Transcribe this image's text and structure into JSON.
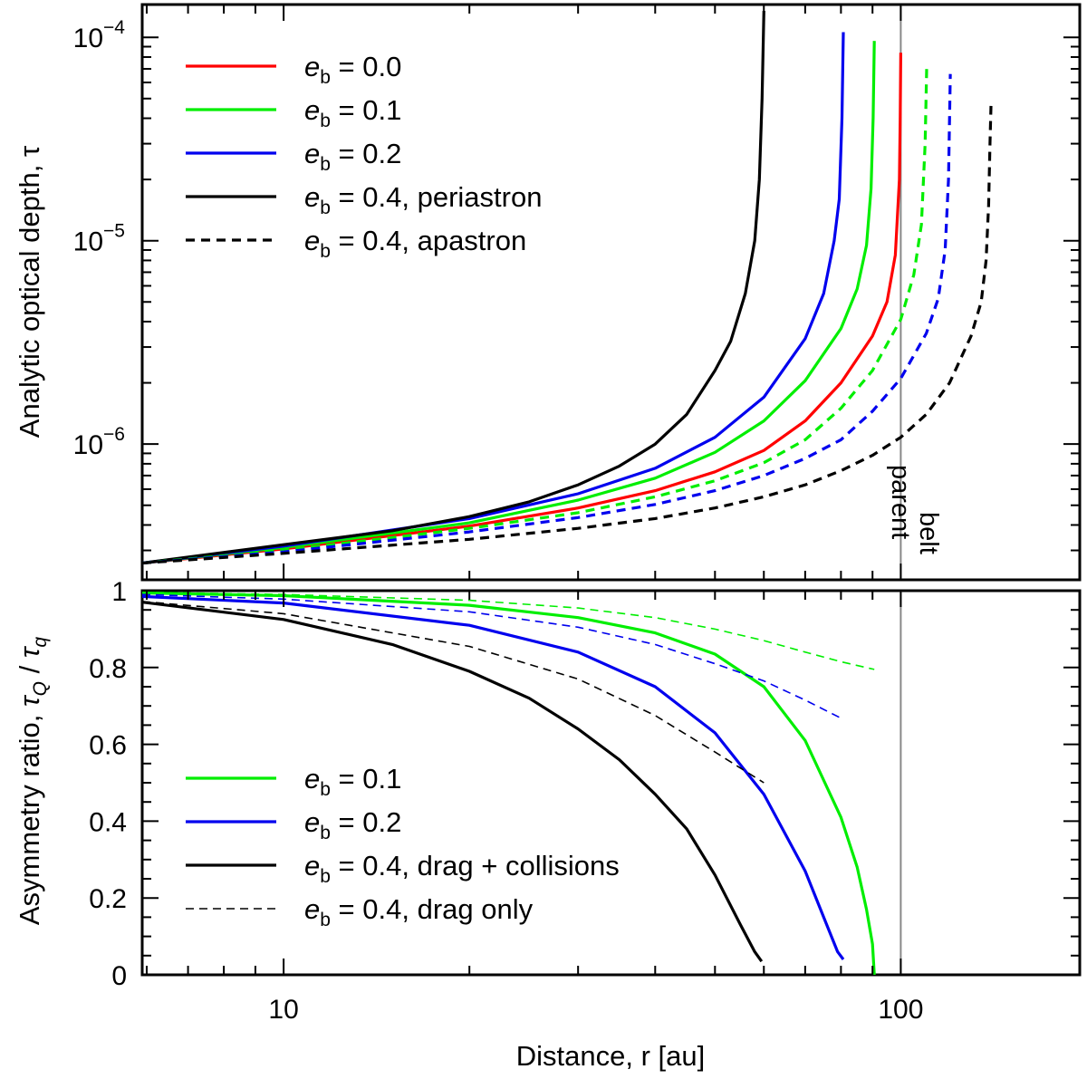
{
  "chart_data": [
    {
      "type": "line",
      "panel": "top",
      "ylabel": "Analytic optical depth, τ",
      "xscale": "log",
      "yscale": "log",
      "xlim": [
        5.9,
        195
      ],
      "ylim": [
        2.15e-07,
        0.000145
      ],
      "yticks": [
        {
          "value": 1e-06,
          "mant": "10",
          "exp": "−6"
        },
        {
          "value": 1e-05,
          "mant": "10",
          "exp": "−5"
        },
        {
          "value": 0.0001,
          "mant": "10",
          "exp": "−4"
        }
      ],
      "reference_line": {
        "x": 100,
        "labels": [
          "parent",
          "belt"
        ]
      },
      "legend": [
        {
          "symbol": "e",
          "sub": "b",
          "text": " = 0.0",
          "color": "#ff0000",
          "dash": "solid"
        },
        {
          "symbol": "e",
          "sub": "b",
          "text": " = 0.1",
          "color": "#00ee00",
          "dash": "solid"
        },
        {
          "symbol": "e",
          "sub": "b",
          "text": " = 0.2",
          "color": "#0000ee",
          "dash": "solid"
        },
        {
          "symbol": "e",
          "sub": "b",
          "text": " = 0.4, periastron",
          "color": "#000000",
          "dash": "solid"
        },
        {
          "symbol": "e",
          "sub": "b",
          "text": " = 0.4, apastron",
          "color": "#000000",
          "dash": "dashed"
        }
      ],
      "series": [
        {
          "name": "e_b = 0.0",
          "color": "#ff0000",
          "dash": "solid",
          "width": 3.2,
          "points": [
            [
              5.9,
              2.6e-07
            ],
            [
              10,
              3.05e-07
            ],
            [
              20,
              3.95e-07
            ],
            [
              30,
              4.85e-07
            ],
            [
              40,
              5.9e-07
            ],
            [
              50,
              7.3e-07
            ],
            [
              60,
              9.3e-07
            ],
            [
              70,
              1.3e-06
            ],
            [
              80,
              2e-06
            ],
            [
              90,
              3.4e-06
            ],
            [
              95,
              5e-06
            ],
            [
              98,
              8.5e-06
            ],
            [
              99.5,
              2e-05
            ],
            [
              99.8,
              4e-05
            ],
            [
              100,
              8.4e-05
            ]
          ]
        },
        {
          "name": "e_b = 0.1",
          "color": "#00ee00",
          "dash": "solid",
          "width": 3.2,
          "points": [
            [
              5.9,
              2.6e-07
            ],
            [
              10,
              3.1e-07
            ],
            [
              20,
              4.1e-07
            ],
            [
              30,
              5.3e-07
            ],
            [
              40,
              6.8e-07
            ],
            [
              50,
              9.1e-07
            ],
            [
              60,
              1.3e-06
            ],
            [
              70,
              2.05e-06
            ],
            [
              80,
              3.7e-06
            ],
            [
              85,
              5.8e-06
            ],
            [
              88,
              9.5e-06
            ],
            [
              89.5,
              1.8e-05
            ],
            [
              90.2,
              4e-05
            ],
            [
              90.6,
              9.6e-05
            ]
          ]
        },
        {
          "name": "e_b = 0.2",
          "color": "#0000ee",
          "dash": "solid",
          "width": 3.2,
          "points": [
            [
              5.9,
              2.6e-07
            ],
            [
              10,
              3.15e-07
            ],
            [
              20,
              4.3e-07
            ],
            [
              30,
              5.7e-07
            ],
            [
              40,
              7.6e-07
            ],
            [
              50,
              1.08e-06
            ],
            [
              60,
              1.7e-06
            ],
            [
              70,
              3.3e-06
            ],
            [
              75,
              5.5e-06
            ],
            [
              78,
              1e-05
            ],
            [
              79.5,
              1.6e-05
            ],
            [
              80.3,
              4e-05
            ],
            [
              80.7,
              0.000106
            ]
          ]
        },
        {
          "name": "e_b = 0.4, periastron",
          "color": "#000000",
          "dash": "solid",
          "width": 3.2,
          "points": [
            [
              5.9,
              2.6e-07
            ],
            [
              10,
              3.2e-07
            ],
            [
              15,
              3.75e-07
            ],
            [
              20,
              4.4e-07
            ],
            [
              25,
              5.2e-07
            ],
            [
              30,
              6.3e-07
            ],
            [
              35,
              7.8e-07
            ],
            [
              40,
              1e-06
            ],
            [
              45,
              1.4e-06
            ],
            [
              50,
              2.3e-06
            ],
            [
              53,
              3.2e-06
            ],
            [
              56,
              5.5e-06
            ],
            [
              58,
              1e-05
            ],
            [
              59,
              2e-05
            ],
            [
              59.6,
              5e-05
            ],
            [
              60,
              0.000135
            ]
          ]
        },
        {
          "name": "e_b = 0.1 (apastron)",
          "color": "#00ee00",
          "dash": "dashed",
          "width": 3.2,
          "points": [
            [
              5.9,
              2.6e-07
            ],
            [
              10,
              3e-07
            ],
            [
              20,
              3.85e-07
            ],
            [
              30,
              4.6e-07
            ],
            [
              40,
              5.5e-07
            ],
            [
              50,
              6.6e-07
            ],
            [
              60,
              8.1e-07
            ],
            [
              70,
              1.05e-06
            ],
            [
              80,
              1.5e-06
            ],
            [
              90,
              2.3e-06
            ],
            [
              100,
              4.1e-06
            ],
            [
              105,
              6.8e-06
            ],
            [
              108,
              1.2e-05
            ],
            [
              109.5,
              3e-05
            ],
            [
              110.2,
              7.4e-05
            ]
          ]
        },
        {
          "name": "e_b = 0.2 (apastron)",
          "color": "#0000ee",
          "dash": "dashed",
          "width": 3.2,
          "points": [
            [
              5.9,
              2.6e-07
            ],
            [
              10,
              2.95e-07
            ],
            [
              20,
              3.7e-07
            ],
            [
              30,
              4.35e-07
            ],
            [
              40,
              5.05e-07
            ],
            [
              50,
              5.9e-07
            ],
            [
              60,
              7e-07
            ],
            [
              70,
              8.5e-07
            ],
            [
              80,
              1.05e-06
            ],
            [
              90,
              1.45e-06
            ],
            [
              100,
              2.1e-06
            ],
            [
              110,
              3.5e-06
            ],
            [
              115,
              5.2e-06
            ],
            [
              118,
              9e-06
            ],
            [
              119.5,
              2e-05
            ],
            [
              120.3,
              6.6e-05
            ]
          ]
        },
        {
          "name": "e_b = 0.4, apastron",
          "color": "#000000",
          "dash": "dashed",
          "width": 3.2,
          "points": [
            [
              5.9,
              2.6e-07
            ],
            [
              10,
              2.9e-07
            ],
            [
              20,
              3.4e-07
            ],
            [
              30,
              3.85e-07
            ],
            [
              40,
              4.3e-07
            ],
            [
              50,
              4.85e-07
            ],
            [
              60,
              5.5e-07
            ],
            [
              70,
              6.3e-07
            ],
            [
              80,
              7.4e-07
            ],
            [
              90,
              8.8e-07
            ],
            [
              100,
              1.08e-06
            ],
            [
              110,
              1.4e-06
            ],
            [
              120,
              2e-06
            ],
            [
              130,
              3.4e-06
            ],
            [
              135,
              5e-06
            ],
            [
              137.5,
              8e-06
            ],
            [
              138.8,
              1.5e-05
            ],
            [
              139.5,
              3e-05
            ],
            [
              140,
              4.6e-05
            ]
          ]
        }
      ]
    },
    {
      "type": "line",
      "panel": "bottom",
      "xlabel": "Distance, r [au]",
      "xscale": "log",
      "xlim": [
        5.9,
        195
      ],
      "ylim": [
        0,
        1.0
      ],
      "xticks": [
        {
          "value": 10,
          "label": "10"
        },
        {
          "value": 100,
          "label": "100"
        }
      ],
      "yticks": [
        {
          "value": 0,
          "label": "0"
        },
        {
          "value": 0.2,
          "label": "0.2"
        },
        {
          "value": 0.4,
          "label": "0.4"
        },
        {
          "value": 0.6,
          "label": "0.6"
        },
        {
          "value": 0.8,
          "label": "0.8"
        },
        {
          "value": 1.0,
          "label": "1"
        }
      ],
      "ylabel_parts": {
        "text": "Asymmetry ratio, ",
        "t1": "τ",
        "s1": "Q",
        "slash": " / ",
        "t2": "τ",
        "s2": "q"
      },
      "reference_line": {
        "x": 100
      },
      "legend": [
        {
          "symbol": "e",
          "sub": "b",
          "text": " = 0.1",
          "color": "#00ee00",
          "dash": "solid",
          "width": 3.2
        },
        {
          "symbol": "e",
          "sub": "b",
          "text": " = 0.2",
          "color": "#0000ee",
          "dash": "solid",
          "width": 3.2
        },
        {
          "symbol": "e",
          "sub": "b",
          "text": " = 0.4, drag + collisions",
          "color": "#000000",
          "dash": "solid",
          "width": 3.2
        },
        {
          "symbol": "e",
          "sub": "b",
          "text": " = 0.4, drag only",
          "color": "#000000",
          "dash": "dashed",
          "width": 1.6
        }
      ],
      "series": [
        {
          "name": "e_b = 0.1, drag + collisions",
          "color": "#00ee00",
          "dash": "solid",
          "width": 3.2,
          "points": [
            [
              5.9,
              0.994
            ],
            [
              10,
              0.987
            ],
            [
              20,
              0.962
            ],
            [
              30,
              0.93
            ],
            [
              40,
              0.89
            ],
            [
              50,
              0.835
            ],
            [
              60,
              0.75
            ],
            [
              70,
              0.61
            ],
            [
              80,
              0.41
            ],
            [
              85,
              0.28
            ],
            [
              88,
              0.17
            ],
            [
              90,
              0.08
            ],
            [
              90.6,
              0.0
            ]
          ]
        },
        {
          "name": "e_b = 0.1, drag only",
          "color": "#00ee00",
          "dash": "dashed",
          "width": 1.6,
          "points": [
            [
              5.9,
              0.996
            ],
            [
              10,
              0.99
            ],
            [
              20,
              0.975
            ],
            [
              30,
              0.955
            ],
            [
              40,
              0.93
            ],
            [
              50,
              0.9
            ],
            [
              60,
              0.87
            ],
            [
              70,
              0.84
            ],
            [
              80,
              0.815
            ],
            [
              90.6,
              0.795
            ]
          ]
        },
        {
          "name": "e_b = 0.2, drag + collisions",
          "color": "#0000ee",
          "dash": "solid",
          "width": 3.2,
          "points": [
            [
              5.9,
              0.985
            ],
            [
              10,
              0.968
            ],
            [
              20,
              0.91
            ],
            [
              30,
              0.84
            ],
            [
              40,
              0.75
            ],
            [
              50,
              0.63
            ],
            [
              60,
              0.47
            ],
            [
              70,
              0.27
            ],
            [
              75,
              0.15
            ],
            [
              79,
              0.06
            ],
            [
              80.7,
              0.04
            ]
          ]
        },
        {
          "name": "e_b = 0.2, drag only",
          "color": "#0000ee",
          "dash": "dashed",
          "width": 1.6,
          "points": [
            [
              5.9,
              0.99
            ],
            [
              10,
              0.978
            ],
            [
              20,
              0.945
            ],
            [
              30,
              0.905
            ],
            [
              40,
              0.86
            ],
            [
              50,
              0.81
            ],
            [
              60,
              0.765
            ],
            [
              70,
              0.715
            ],
            [
              80.7,
              0.665
            ]
          ]
        },
        {
          "name": "e_b = 0.4, drag + collisions",
          "color": "#000000",
          "dash": "solid",
          "width": 3.2,
          "points": [
            [
              5.9,
              0.97
            ],
            [
              10,
              0.925
            ],
            [
              15,
              0.86
            ],
            [
              20,
              0.79
            ],
            [
              25,
              0.72
            ],
            [
              30,
              0.64
            ],
            [
              35,
              0.56
            ],
            [
              40,
              0.47
            ],
            [
              45,
              0.38
            ],
            [
              50,
              0.26
            ],
            [
              55,
              0.13
            ],
            [
              58,
              0.06
            ],
            [
              59.5,
              0.035
            ]
          ]
        },
        {
          "name": "e_b = 0.4, drag only",
          "color": "#000000",
          "dash": "dashed",
          "width": 1.6,
          "points": [
            [
              5.9,
              0.972
            ],
            [
              10,
              0.94
            ],
            [
              20,
              0.855
            ],
            [
              30,
              0.77
            ],
            [
              40,
              0.675
            ],
            [
              50,
              0.58
            ],
            [
              60,
              0.5
            ]
          ]
        }
      ]
    }
  ]
}
